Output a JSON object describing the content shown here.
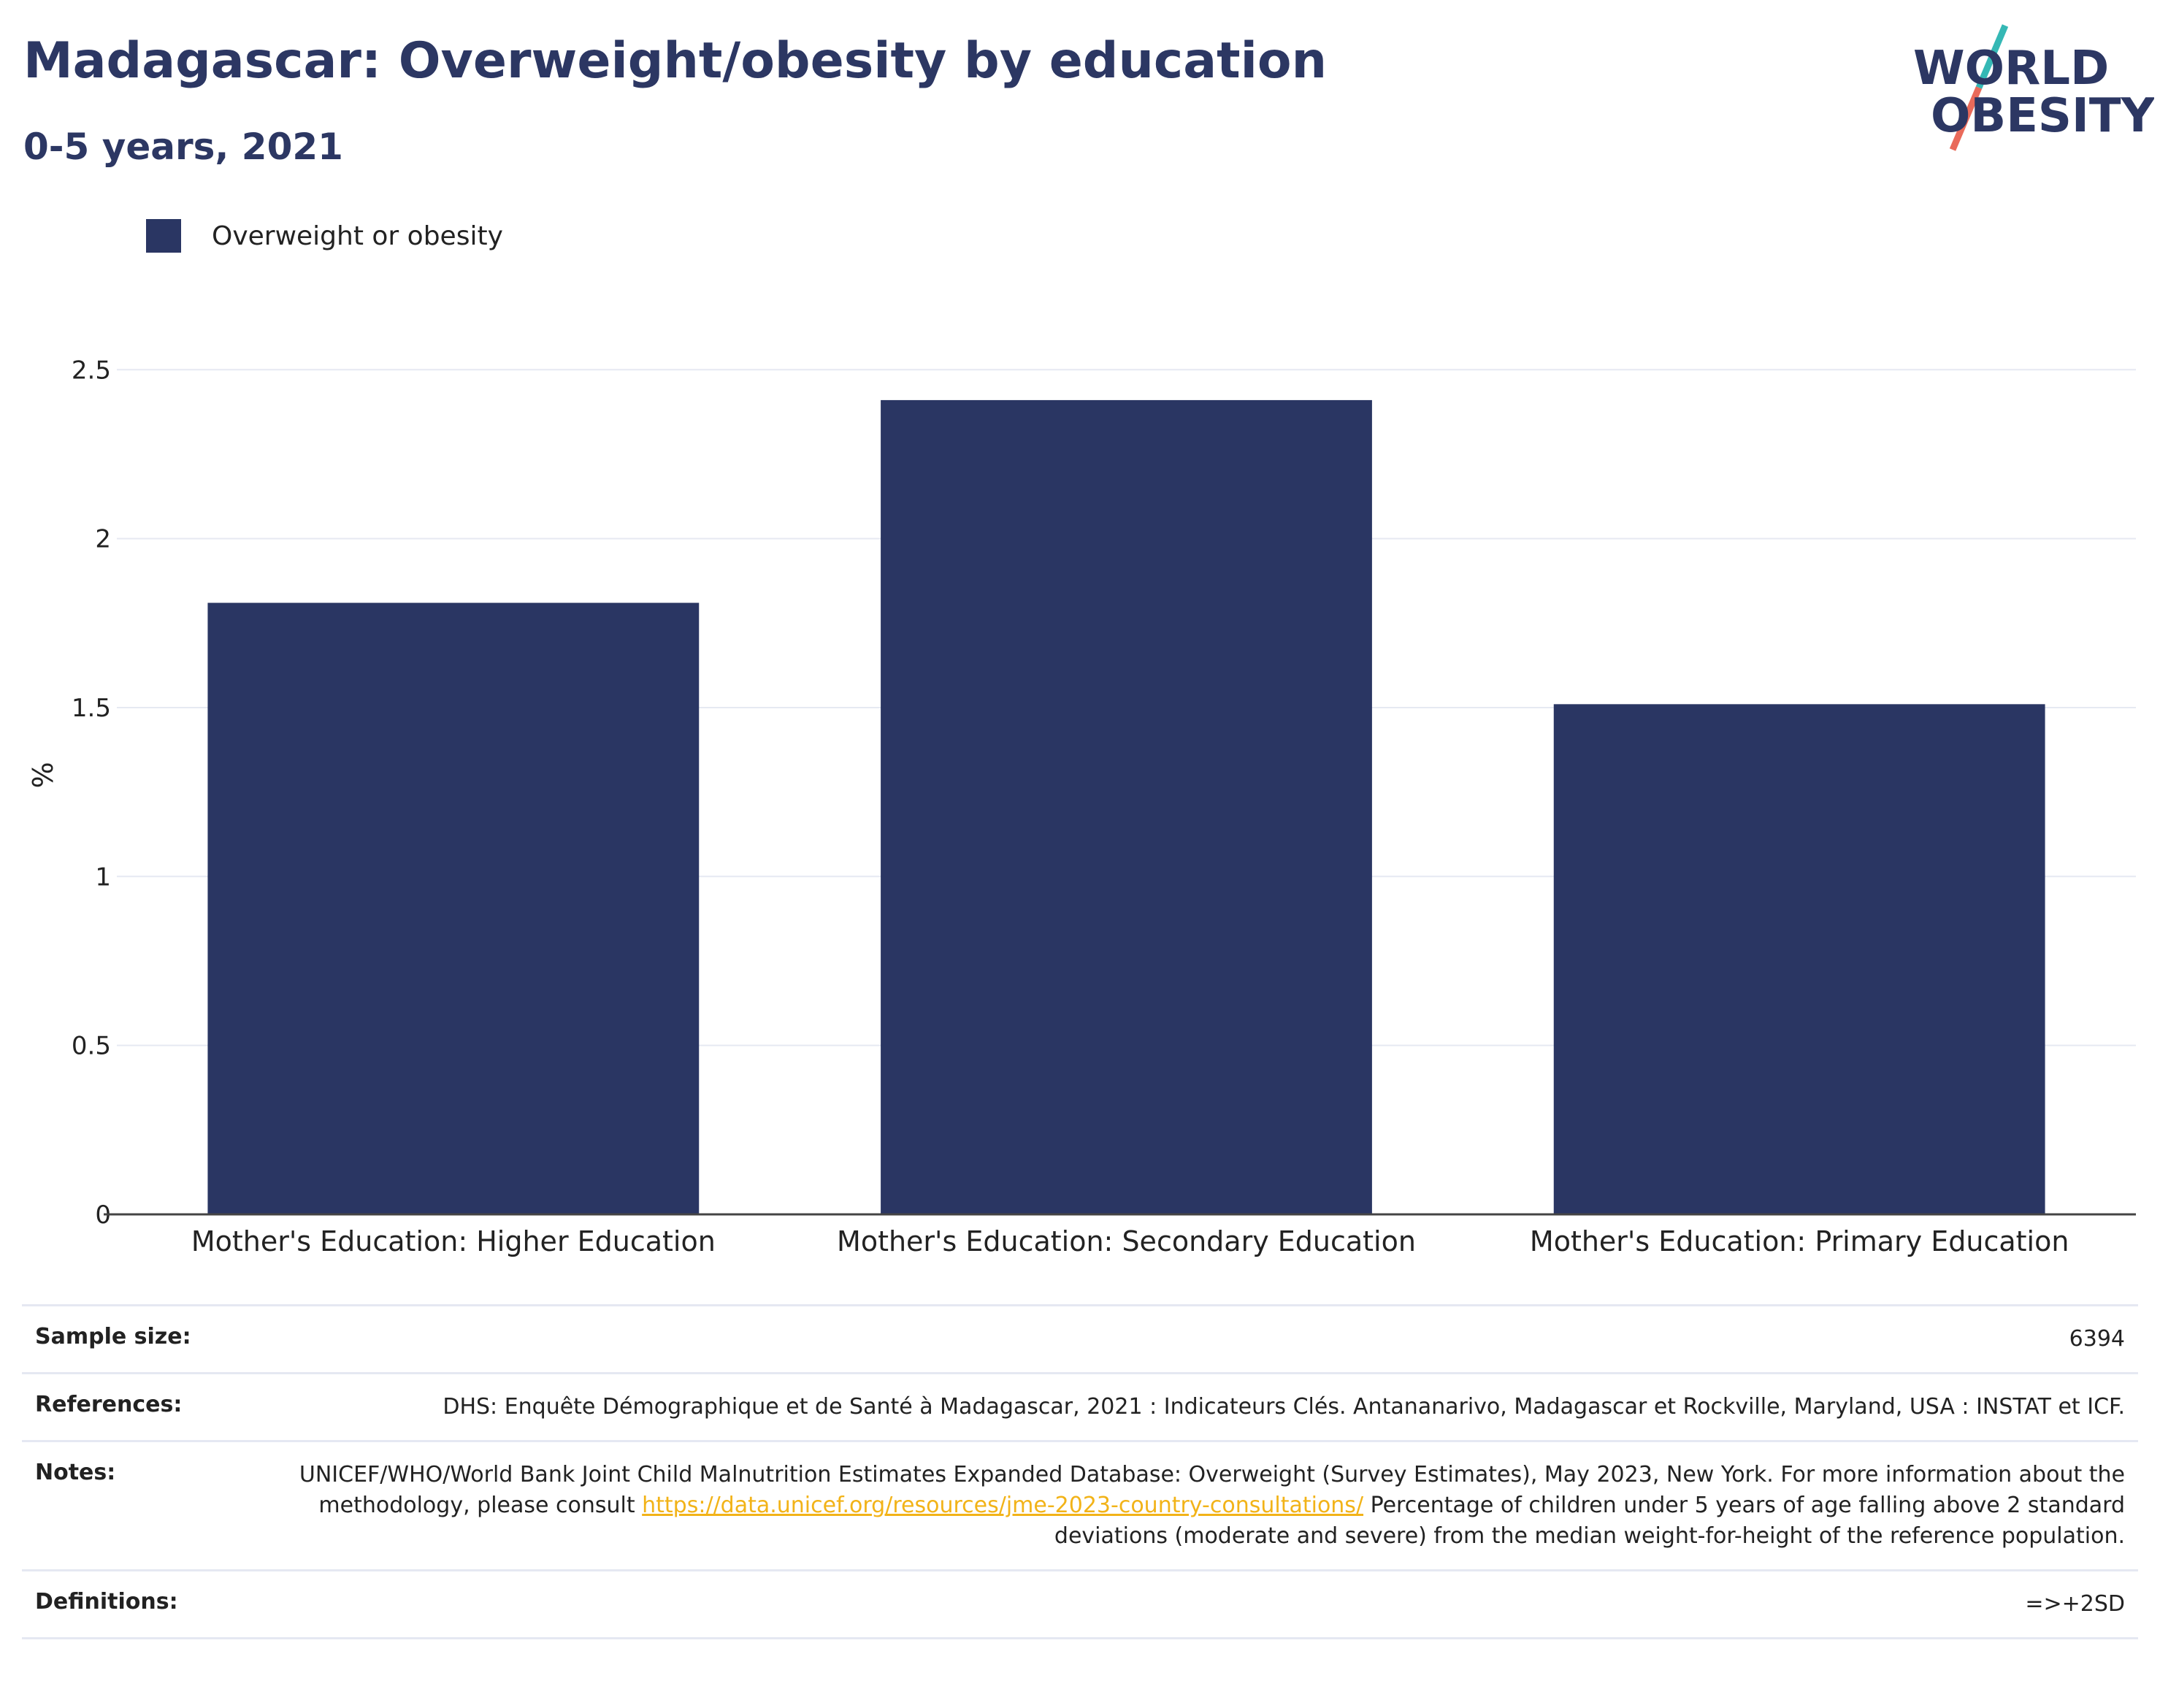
{
  "header": {
    "title": "Madagascar: Overweight/obesity by education",
    "subtitle": "0-5 years, 2021"
  },
  "logo": {
    "line1": "WORLD",
    "line2": "OBESITY"
  },
  "colors": {
    "bar": "#2a3663",
    "title": "#2c3763",
    "grid": "#e6e9f2",
    "link": "#f2b318",
    "logo_teal": "#35b8b5",
    "logo_red": "#e96a5a"
  },
  "chart_data": {
    "type": "bar",
    "title": "Madagascar: Overweight/obesity by education",
    "subtitle": "0-5 years, 2021",
    "categories": [
      "Mother's Education: Higher Education",
      "Mother's Education: Secondary Education",
      "Mother's Education: Primary Education"
    ],
    "series": [
      {
        "name": "Overweight or obesity",
        "values": [
          1.81,
          2.41,
          1.51
        ]
      }
    ],
    "xlabel": "",
    "ylabel": "%",
    "ylim": [
      0,
      2.6
    ],
    "yticks": [
      0,
      0.5,
      1,
      1.5,
      2,
      2.5
    ],
    "ytick_labels": [
      "0",
      "0.5",
      "1",
      "1.5",
      "2",
      "2.5"
    ],
    "grid": true,
    "legend_position": "top-left"
  },
  "info": {
    "sample_size_label": "Sample size:",
    "sample_size": "6394",
    "references_label": "References:",
    "references": "DHS: Enquête Démographique et de Santé à Madagascar, 2021 : Indicateurs Clés. Antananarivo, Madagascar et Rockville, Maryland, USA : INSTAT et ICF.",
    "notes_label": "Notes:",
    "notes_text": "UNICEF/WHO/World Bank Joint Child Malnutrition Estimates Expanded Database: Overweight (Survey Estimates), May 2023, New York. For more information about the methodology, please consult ",
    "notes_link": "https://data.unicef.org/resources/jme-2023-country-consultations/",
    "notes_text2": " Percentage of children under 5 years of age falling above 2 standard deviations (moderate and severe) from the median weight-for-height of the reference population.",
    "definitions_label": "Definitions:",
    "definitions": "=>+2SD"
  }
}
